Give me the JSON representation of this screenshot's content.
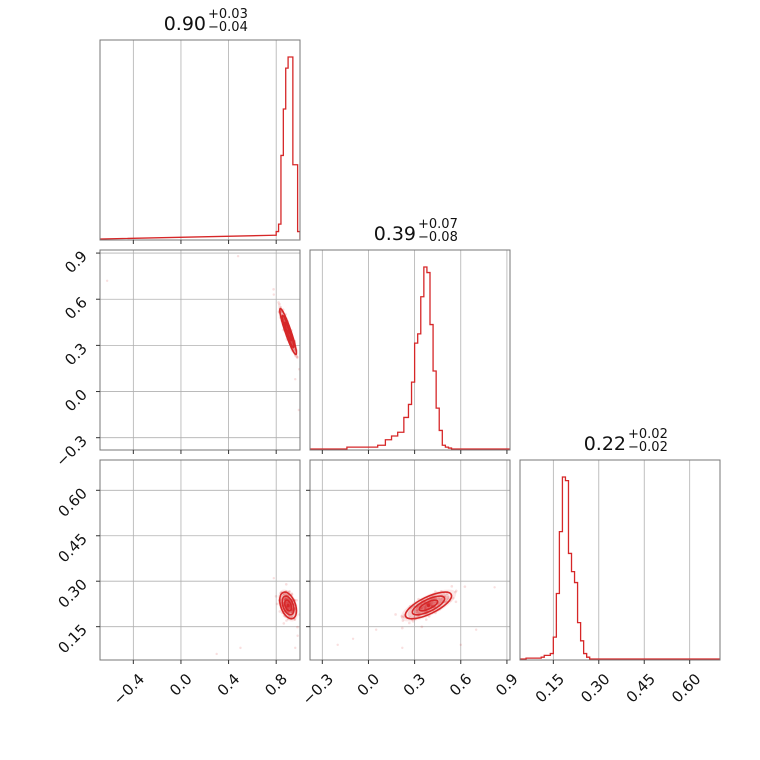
{
  "chart_data": {
    "type": "corner",
    "colors": {
      "accent": "#d62728",
      "grid": "#b0b0b0",
      "frame": "#777777"
    },
    "grid": true,
    "parameters": [
      {
        "index": 0,
        "median": 0.9,
        "plus": 0.03,
        "minus": 0.04,
        "title_main": "0.90",
        "title_sup": "+0.03",
        "title_sub": "−0.04",
        "range": [
          -0.68,
          1.0
        ],
        "ticks": [
          -0.4,
          0.0,
          0.4,
          0.8
        ],
        "tick_labels": [
          "−0.4",
          "0.0",
          "0.4",
          "0.8"
        ],
        "hist": {
          "edges": [
            0.78,
            0.8,
            0.82,
            0.84,
            0.86,
            0.88,
            0.9,
            0.92,
            0.94,
            0.96,
            0.98,
            1.0
          ],
          "counts": [
            2,
            4,
            8,
            45,
            70,
            92,
            98,
            98,
            40,
            40,
            4
          ]
        }
      },
      {
        "index": 1,
        "median": 0.39,
        "plus": 0.07,
        "minus": 0.08,
        "title_main": "0.39",
        "title_sup": "+0.07",
        "title_sub": "−0.08",
        "range": [
          -0.38,
          0.92
        ],
        "ticks": [
          -0.3,
          0.0,
          0.3,
          0.6,
          0.9
        ],
        "tick_labels": [
          "−0.3",
          "0.0",
          "0.3",
          "0.6",
          "0.9"
        ],
        "y_tick_labels": [
          "−0.3",
          "0.0",
          "0.3",
          "0.6",
          "0.9"
        ],
        "hist": {
          "edges": [
            -0.38,
            -0.14,
            -0.01,
            0.06,
            0.11,
            0.15,
            0.19,
            0.23,
            0.26,
            0.28,
            0.3,
            0.32,
            0.34,
            0.36,
            0.38,
            0.4,
            0.42,
            0.44,
            0.46,
            0.48,
            0.5,
            0.52,
            0.54,
            0.56,
            0.92
          ],
          "counts": [
            0,
            1,
            1,
            2,
            5,
            7,
            9,
            17,
            24,
            36,
            57,
            62,
            82,
            98,
            95,
            67,
            42,
            22,
            10,
            2,
            1,
            0.5,
            0,
            0
          ]
        }
      },
      {
        "index": 2,
        "median": 0.22,
        "plus": 0.02,
        "minus": 0.02,
        "title_main": "0.22",
        "title_sup": "+0.02",
        "title_sub": "−0.02",
        "range": [
          0.04,
          0.7
        ],
        "ticks": [
          0.15,
          0.3,
          0.45,
          0.6
        ],
        "tick_labels": [
          "0.15",
          "0.30",
          "0.45",
          "0.60"
        ],
        "y_tick_labels": [
          "0.15",
          "0.30",
          "0.45",
          "0.60"
        ],
        "hist": {
          "edges": [
            0.04,
            0.06,
            0.11,
            0.12,
            0.14,
            0.15,
            0.16,
            0.17,
            0.18,
            0.19,
            0.2,
            0.21,
            0.22,
            0.23,
            0.24,
            0.25,
            0.26,
            0.27,
            0.28,
            0.29,
            0.7
          ],
          "counts": [
            0,
            0.5,
            1,
            2,
            3,
            12,
            36,
            70,
            100,
            98,
            58,
            48,
            42,
            20,
            10,
            3,
            1,
            0,
            0,
            0
          ]
        }
      }
    ],
    "pairs": [
      {
        "x": 0,
        "y": 1,
        "rho": -0.93,
        "x_sigma": 0.035,
        "y_sigma": 0.075,
        "center": [
          0.9,
          0.39
        ],
        "outliers": [
          [
            -0.62,
            0.72
          ],
          [
            0.48,
            0.88
          ],
          [
            0.78,
            0.63
          ],
          [
            0.99,
            -0.12
          ],
          [
            0.96,
            0.08
          ]
        ]
      },
      {
        "x": 0,
        "y": 2,
        "rho": -0.4,
        "x_sigma": 0.035,
        "y_sigma": 0.022,
        "center": [
          0.9,
          0.22
        ],
        "outliers": [
          [
            0.3,
            0.06
          ],
          [
            0.5,
            0.08
          ],
          [
            0.96,
            0.08
          ],
          [
            0.98,
            0.12
          ],
          [
            0.78,
            0.31
          ]
        ]
      },
      {
        "x": 1,
        "y": 2,
        "rho": 0.72,
        "x_sigma": 0.075,
        "y_sigma": 0.022,
        "center": [
          0.39,
          0.22
        ],
        "outliers": [
          [
            -0.1,
            0.11
          ],
          [
            -0.2,
            0.09
          ],
          [
            0.22,
            0.08
          ],
          [
            0.7,
            0.14
          ],
          [
            0.82,
            0.28
          ],
          [
            0.05,
            0.14
          ],
          [
            0.6,
            0.09
          ]
        ]
      }
    ]
  }
}
